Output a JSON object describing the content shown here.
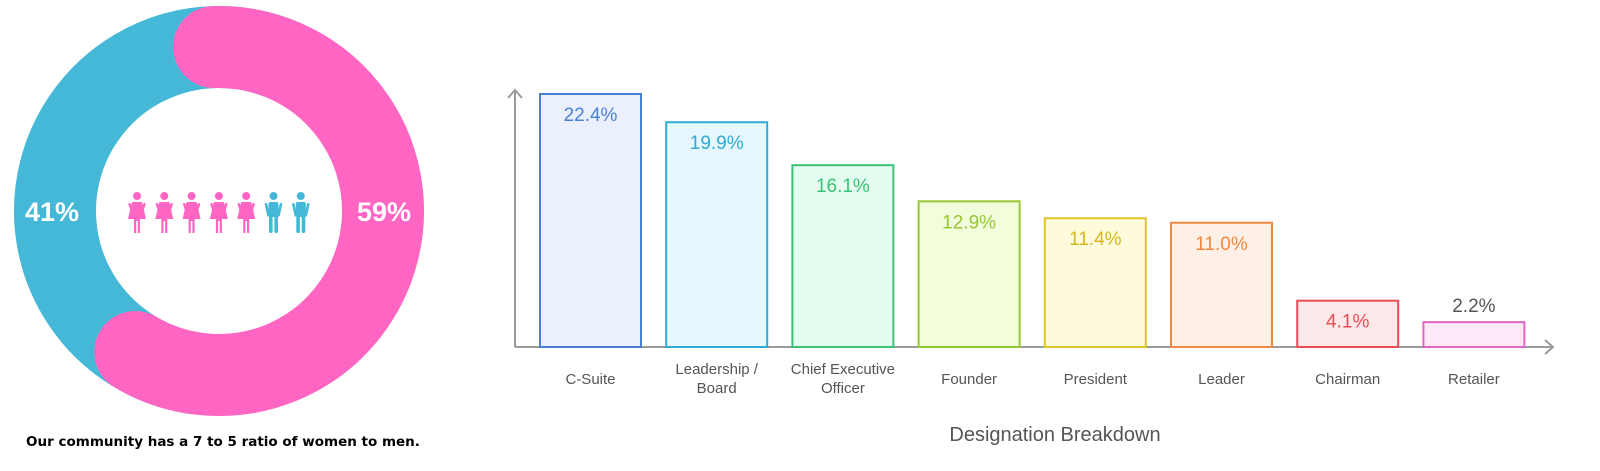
{
  "donut": {
    "segments": [
      {
        "name": "women",
        "value": 59,
        "label": "59%",
        "color": "#ff66c4"
      },
      {
        "name": "men",
        "value": 41,
        "label": "41%",
        "color": "#45b8d8"
      }
    ],
    "people_icons": [
      "women",
      "women",
      "women",
      "women",
      "women",
      "men",
      "men"
    ],
    "caption": "Our community has a 7 to 5 ratio of women to men."
  },
  "chart_data": {
    "type": "bar",
    "categories": [
      [
        "C-Suite"
      ],
      [
        "Leadership /",
        "Board"
      ],
      [
        "Chief Executive",
        "Officer"
      ],
      [
        "Founder"
      ],
      [
        "President"
      ],
      [
        "Leader"
      ],
      [
        "Chairman"
      ],
      [
        "Retailer"
      ]
    ],
    "values": [
      22.4,
      19.9,
      16.1,
      12.9,
      11.4,
      11.0,
      4.1,
      2.2
    ],
    "value_labels": [
      "22.4%",
      "19.9%",
      "16.1%",
      "12.9%",
      "11.4%",
      "11.0%",
      "4.1%",
      "2.2%"
    ],
    "xlabel": "Designation Breakdown",
    "ylabel": "",
    "ylim": [
      0,
      22.4
    ],
    "grid": false,
    "bar_colors": [
      {
        "stroke": "#4a7fd6",
        "fill": "#eaf1fd",
        "text": "#4a7fd6"
      },
      {
        "stroke": "#2eaad6",
        "fill": "#e6f7fd",
        "text": "#2eaad6"
      },
      {
        "stroke": "#3cc177",
        "fill": "#e4fbef",
        "text": "#3cc177"
      },
      {
        "stroke": "#96c832",
        "fill": "#f2fddc",
        "text": "#96c832"
      },
      {
        "stroke": "#e0c525",
        "fill": "#fefbdc",
        "text": "#d4b81c"
      },
      {
        "stroke": "#ee8840",
        "fill": "#fef0e6",
        "text": "#ee8840"
      },
      {
        "stroke": "#e84c54",
        "fill": "#fde8e9",
        "text": "#e84c54"
      },
      {
        "stroke": "#e066c6",
        "fill": "#fde8f8",
        "text": "#555555"
      }
    ]
  }
}
